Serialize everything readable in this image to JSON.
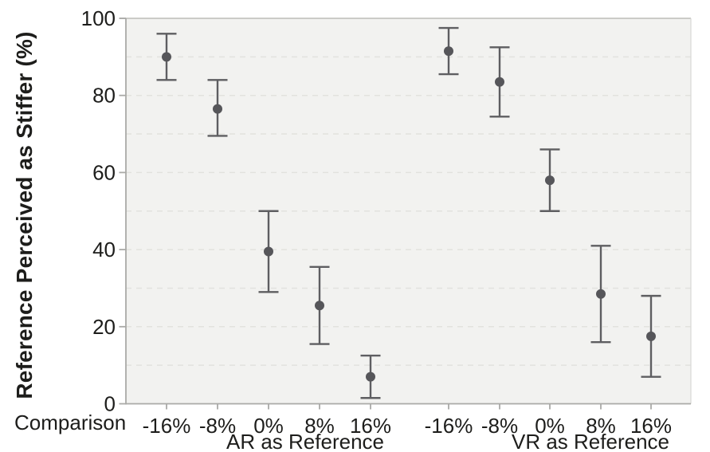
{
  "chart_data": {
    "type": "scatter",
    "title": "",
    "ylabel": "Reference Perceived as Stiffer (%)",
    "xlabel": "Comparison",
    "ylim": [
      0,
      100
    ],
    "yticks": [
      0,
      20,
      40,
      60,
      80,
      100
    ],
    "grid_values": [
      10,
      20,
      30,
      40,
      50,
      60,
      70,
      80,
      90
    ],
    "grid": "horizontal-dashed",
    "legend": "none",
    "marker": "dot-with-error-bars",
    "groups": [
      {
        "label": "AR as Reference",
        "categories": [
          "-16%",
          "-8%",
          "0%",
          "8%",
          "16%"
        ],
        "points": [
          {
            "category": "-16%",
            "mean": 90,
            "ci_low": 84,
            "ci_high": 96
          },
          {
            "category": "-8%",
            "mean": 76.5,
            "ci_low": 69.5,
            "ci_high": 84
          },
          {
            "category": "0%",
            "mean": 39.5,
            "ci_low": 29,
            "ci_high": 50
          },
          {
            "category": "8%",
            "mean": 25.5,
            "ci_low": 15.5,
            "ci_high": 35.5
          },
          {
            "category": "16%",
            "mean": 7,
            "ci_low": 1.5,
            "ci_high": 12.5
          }
        ]
      },
      {
        "label": "VR as Reference",
        "categories": [
          "-16%",
          "-8%",
          "0%",
          "8%",
          "16%"
        ],
        "points": [
          {
            "category": "-16%",
            "mean": 91.5,
            "ci_low": 85.5,
            "ci_high": 97.5
          },
          {
            "category": "-8%",
            "mean": 83.5,
            "ci_low": 74.5,
            "ci_high": 92.5
          },
          {
            "category": "0%",
            "mean": 58,
            "ci_low": 50,
            "ci_high": 66
          },
          {
            "category": "8%",
            "mean": 28.5,
            "ci_low": 16,
            "ci_high": 41
          },
          {
            "category": "16%",
            "mean": 17.5,
            "ci_low": 7,
            "ci_high": 28
          }
        ]
      }
    ],
    "colors": {
      "marker": "#56565a",
      "error_bar": "#5e5e61",
      "plot_background": "#f2f2f0",
      "gridline": "#e2e2de",
      "axis": "#aaaaa7",
      "frame_top": "#c4c4c1",
      "frame_right": "#d8d8d5",
      "text": "#1d1d1b"
    }
  }
}
